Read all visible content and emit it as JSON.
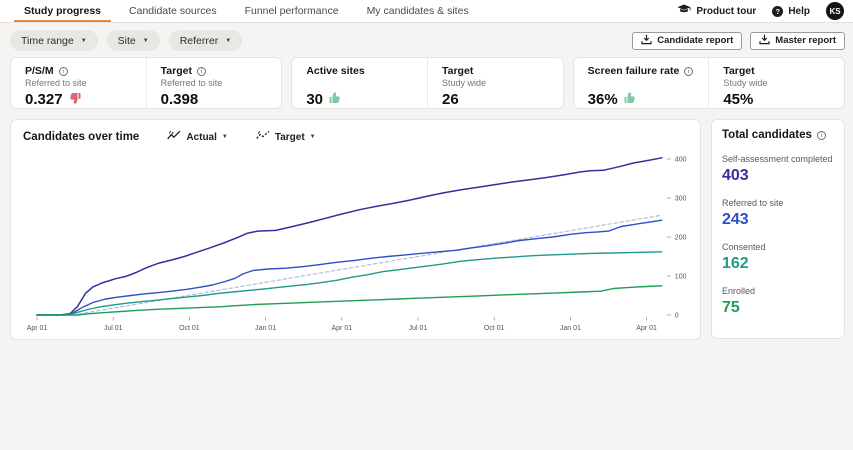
{
  "colors": {
    "accent": "#e2873e",
    "thumb_up": "#7ec9a1",
    "thumb_down": "#e0636f"
  },
  "header": {
    "tabs": [
      {
        "label": "Study progress",
        "active": true
      },
      {
        "label": "Candidate sources",
        "active": false
      },
      {
        "label": "Funnel performance",
        "active": false
      },
      {
        "label": "My candidates & sites",
        "active": false
      }
    ],
    "product_tour_label": "Product tour",
    "help_label": "Help",
    "avatar_initials": "KS"
  },
  "filters": {
    "time_range_label": "Time range",
    "site_label": "Site",
    "referrer_label": "Referrer"
  },
  "report_buttons": {
    "candidate_label": "Candidate report",
    "master_label": "Master report"
  },
  "kpi_cards": [
    {
      "cells": [
        {
          "label": "P/S/M",
          "subtitle": "Referred to site",
          "value": "0.327",
          "thumb": "down"
        },
        {
          "label": "Target",
          "subtitle": "Referred to site",
          "value": "0.398"
        }
      ]
    },
    {
      "cells": [
        {
          "label": "Active sites",
          "value": "30",
          "thumb": "up"
        },
        {
          "label": "Target",
          "subtitle": "Study wide",
          "value": "26"
        }
      ]
    },
    {
      "cells": [
        {
          "label": "Screen failure rate",
          "value": "36%",
          "thumb": "up"
        },
        {
          "label": "Target",
          "subtitle": "Study wide",
          "value": "45%"
        }
      ]
    }
  ],
  "chart": {
    "title": "Candidates over time",
    "selectors": [
      {
        "label": "Actual"
      },
      {
        "label": "Target"
      }
    ]
  },
  "chart_data": {
    "type": "line",
    "title": "Candidates over time",
    "x_axis": {
      "unit": "months since study start",
      "range": [
        0,
        24.6
      ],
      "tick_positions": [
        0,
        3,
        6,
        9,
        12,
        15,
        18,
        21,
        24
      ],
      "tick_labels": [
        "Apr 01",
        "Jul 01",
        "Oct 01",
        "Jan 01",
        "Apr 01",
        "Jul 01",
        "Oct 01",
        "Jan 01",
        "Apr 01"
      ]
    },
    "y_axis": {
      "side": "right",
      "range": [
        0,
        400
      ],
      "ticks": [
        0,
        100,
        200,
        300,
        400
      ]
    },
    "grid": false,
    "legend": "none",
    "series": [
      {
        "name": "Self-assessment completed",
        "color": "#372e9e",
        "style": "solid",
        "width": 1.5,
        "final_value": 403,
        "points": [
          [
            0,
            0
          ],
          [
            0.9,
            0
          ],
          [
            1.3,
            3
          ],
          [
            1.6,
            22
          ],
          [
            1.9,
            55
          ],
          [
            2.2,
            72
          ],
          [
            2.6,
            83
          ],
          [
            3.1,
            93
          ],
          [
            3.5,
            99
          ],
          [
            3.9,
            109
          ],
          [
            4.3,
            121
          ],
          [
            4.8,
            133
          ],
          [
            5.3,
            141
          ],
          [
            5.8,
            150
          ],
          [
            6.3,
            161
          ],
          [
            6.8,
            172
          ],
          [
            7.4,
            186
          ],
          [
            7.9,
            199
          ],
          [
            8.3,
            210
          ],
          [
            8.7,
            215
          ],
          [
            9.4,
            217
          ],
          [
            10,
            226
          ],
          [
            10.7,
            237
          ],
          [
            11.3,
            247
          ],
          [
            12,
            259
          ],
          [
            12.7,
            270
          ],
          [
            13.3,
            278
          ],
          [
            14,
            286
          ],
          [
            14.7,
            295
          ],
          [
            15.4,
            305
          ],
          [
            16,
            313
          ],
          [
            16.7,
            321
          ],
          [
            17.4,
            328
          ],
          [
            18,
            334
          ],
          [
            18.7,
            341
          ],
          [
            19.4,
            347
          ],
          [
            20,
            352
          ],
          [
            20.7,
            359
          ],
          [
            21.4,
            367
          ],
          [
            21.8,
            370
          ],
          [
            22.3,
            371
          ],
          [
            22.9,
            380
          ],
          [
            23.5,
            390
          ],
          [
            24.1,
            397
          ],
          [
            24.6,
            403
          ]
        ]
      },
      {
        "name": "Referred to site",
        "color": "#2e4fc7",
        "style": "solid",
        "width": 1.4,
        "final_value": 243,
        "points": [
          [
            0,
            0
          ],
          [
            1,
            0
          ],
          [
            1.4,
            5
          ],
          [
            1.8,
            20
          ],
          [
            2.2,
            32
          ],
          [
            2.7,
            41
          ],
          [
            3.2,
            46
          ],
          [
            3.7,
            50
          ],
          [
            4.2,
            54
          ],
          [
            4.7,
            57
          ],
          [
            5.3,
            61
          ],
          [
            5.9,
            66
          ],
          [
            6.4,
            71
          ],
          [
            6.9,
            77
          ],
          [
            7.4,
            86
          ],
          [
            7.8,
            94
          ],
          [
            8.1,
            105
          ],
          [
            8.5,
            114
          ],
          [
            9.1,
            118
          ],
          [
            9.8,
            120
          ],
          [
            10.5,
            124
          ],
          [
            11.1,
            129
          ],
          [
            11.8,
            135
          ],
          [
            12.5,
            140
          ],
          [
            13.1,
            145
          ],
          [
            13.8,
            150
          ],
          [
            14.5,
            154
          ],
          [
            15.1,
            158
          ],
          [
            15.8,
            162
          ],
          [
            16.5,
            166
          ],
          [
            17.1,
            172
          ],
          [
            17.8,
            178
          ],
          [
            18.4,
            184
          ],
          [
            19,
            191
          ],
          [
            19.7,
            196
          ],
          [
            20.3,
            200
          ],
          [
            21,
            207
          ],
          [
            21.6,
            211
          ],
          [
            22.1,
            213
          ],
          [
            22.5,
            215
          ],
          [
            23,
            227
          ],
          [
            23.6,
            233
          ],
          [
            24.1,
            238
          ],
          [
            24.6,
            243
          ]
        ]
      },
      {
        "name": "Consented",
        "color": "#21998b",
        "style": "solid",
        "width": 1.4,
        "final_value": 162,
        "points": [
          [
            0,
            0
          ],
          [
            1.2,
            0
          ],
          [
            1.6,
            7
          ],
          [
            2,
            14
          ],
          [
            2.5,
            21
          ],
          [
            3,
            26
          ],
          [
            3.5,
            30
          ],
          [
            4.1,
            34
          ],
          [
            4.7,
            38
          ],
          [
            5.3,
            42
          ],
          [
            5.9,
            46
          ],
          [
            6.5,
            50
          ],
          [
            7.1,
            55
          ],
          [
            7.7,
            59
          ],
          [
            8.2,
            62
          ],
          [
            8.8,
            66
          ],
          [
            9.4,
            70
          ],
          [
            10,
            74
          ],
          [
            10.6,
            78
          ],
          [
            11.2,
            83
          ],
          [
            11.8,
            89
          ],
          [
            12.4,
            97
          ],
          [
            13,
            103
          ],
          [
            13.6,
            111
          ],
          [
            14.2,
            116
          ],
          [
            14.8,
            121
          ],
          [
            15.4,
            126
          ],
          [
            16,
            131
          ],
          [
            16.7,
            138
          ],
          [
            17.4,
            142
          ],
          [
            18.1,
            146
          ],
          [
            18.8,
            149
          ],
          [
            19.5,
            152
          ],
          [
            20.2,
            154
          ],
          [
            21,
            156
          ],
          [
            21.8,
            158
          ],
          [
            22.6,
            159
          ],
          [
            23.4,
            160
          ],
          [
            24,
            161
          ],
          [
            24.6,
            162
          ]
        ]
      },
      {
        "name": "Enrolled",
        "color": "#1f9d57",
        "style": "solid",
        "width": 1.4,
        "final_value": 75,
        "points": [
          [
            0,
            0
          ],
          [
            1.6,
            0
          ],
          [
            2,
            3
          ],
          [
            2.6,
            6
          ],
          [
            3.3,
            9
          ],
          [
            4,
            12
          ],
          [
            4.8,
            15
          ],
          [
            5.6,
            17
          ],
          [
            6.4,
            19
          ],
          [
            7.2,
            21
          ],
          [
            7.9,
            24
          ],
          [
            8.6,
            27
          ],
          [
            9.4,
            29
          ],
          [
            10.2,
            31
          ],
          [
            11,
            33
          ],
          [
            11.8,
            35
          ],
          [
            12.6,
            37
          ],
          [
            13.4,
            39
          ],
          [
            14.2,
            41
          ],
          [
            15,
            43
          ],
          [
            15.8,
            45
          ],
          [
            16.6,
            47
          ],
          [
            17.4,
            49
          ],
          [
            18.2,
            51
          ],
          [
            19,
            53
          ],
          [
            19.8,
            55
          ],
          [
            20.6,
            57
          ],
          [
            21.4,
            59
          ],
          [
            22.2,
            61
          ],
          [
            22.7,
            68
          ],
          [
            23.4,
            71
          ],
          [
            24,
            73
          ],
          [
            24.6,
            75
          ]
        ]
      },
      {
        "name": "Target",
        "color": "#a9b7e3",
        "style": "dashed",
        "width": 1.1,
        "final_value": 256,
        "points": [
          [
            1.4,
            0
          ],
          [
            24.6,
            256
          ]
        ]
      }
    ]
  },
  "totals": {
    "title": "Total candidates",
    "items": [
      {
        "label": "Self-assessment completed",
        "value": "403",
        "color": "#372e9e"
      },
      {
        "label": "Referred to site",
        "value": "243",
        "color": "#2e4fc7"
      },
      {
        "label": "Consented",
        "value": "162",
        "color": "#21998b"
      },
      {
        "label": "Enrolled",
        "value": "75",
        "color": "#1f9d57"
      }
    ]
  }
}
